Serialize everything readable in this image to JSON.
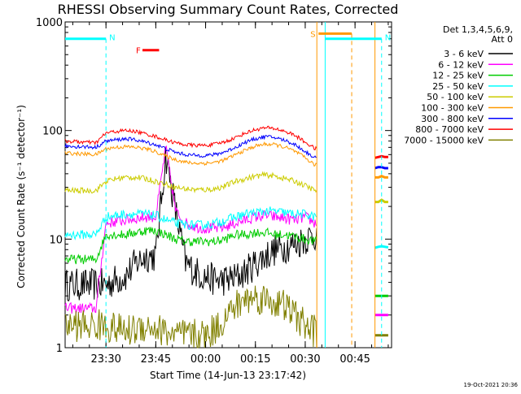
{
  "chart_data": {
    "type": "line",
    "title": "RHESSI Observing Summary Count Rates, Corrected",
    "xlabel": "Start Time (14-Jun-13 23:17:42)",
    "ylabel": "Corrected Count Rate (s⁻¹ detector⁻¹)",
    "y_scale": "log",
    "ylim": [
      1,
      1000
    ],
    "y_ticks": [
      1,
      10,
      100,
      1000
    ],
    "y_tick_labels": [
      "1",
      "10",
      "100",
      "1000"
    ],
    "xlim": [
      "23:17:42",
      "00:56:00"
    ],
    "x_ticks": [
      "23:30",
      "23:45",
      "00:00",
      "00:15",
      "00:30",
      "00:45"
    ],
    "legend_header": [
      "Det 1,3,4,5,6,9,",
      "Att 0"
    ],
    "legend_position": "top-right",
    "footer_date": "19-Oct-2021 20:36",
    "data_gap": [
      "00:33:30",
      "00:51:00"
    ],
    "series": [
      {
        "name": "3 - 6 keV",
        "color": "#000000",
        "x": [
          "23:17:42",
          "23:27",
          "23:30",
          "23:33",
          "23:36",
          "23:39",
          "23:42",
          "23:45",
          "23:48",
          "23:51",
          "23:54",
          "23:57",
          "00:00",
          "00:03",
          "00:06",
          "00:09",
          "00:12",
          "00:15",
          "00:18",
          "00:21",
          "00:24",
          "00:27",
          "00:30",
          "00:33"
        ],
        "values": [
          3.8,
          3.8,
          3.8,
          4.2,
          4.6,
          6.0,
          7.0,
          7.0,
          60,
          18,
          6.0,
          5.0,
          4.5,
          4.2,
          4.2,
          4.4,
          5.0,
          6.0,
          7.0,
          8.0,
          8.5,
          9.0,
          10,
          11
        ]
      },
      {
        "name": "6 - 12 keV",
        "color": "#ff00ff",
        "x": [
          "23:17:42",
          "23:27",
          "23:30",
          "23:33",
          "23:36",
          "23:39",
          "23:42",
          "23:45",
          "23:48",
          "23:51",
          "23:54",
          "23:57",
          "00:00",
          "00:03",
          "00:06",
          "00:09",
          "00:12",
          "00:15",
          "00:18",
          "00:21",
          "00:24",
          "00:27",
          "00:30",
          "00:33"
        ],
        "values": [
          2.3,
          2.3,
          14,
          14.5,
          15,
          15.5,
          16,
          16,
          70,
          18,
          14,
          13,
          12.5,
          12.5,
          13,
          14,
          15,
          16,
          16.5,
          16,
          15.5,
          15,
          16,
          14
        ]
      },
      {
        "name": "12 - 25 keV",
        "color": "#00cc00",
        "x": [
          "23:17:42",
          "23:27",
          "23:30",
          "23:33",
          "23:36",
          "23:39",
          "23:42",
          "23:45",
          "23:48",
          "23:51",
          "23:54",
          "23:57",
          "00:00",
          "00:03",
          "00:06",
          "00:09",
          "00:12",
          "00:15",
          "00:18",
          "00:21",
          "00:24",
          "00:27",
          "00:30",
          "00:33"
        ],
        "values": [
          6.5,
          6.5,
          11,
          11,
          11,
          11.5,
          12,
          12,
          11,
          10,
          9.5,
          9.5,
          9.5,
          9.5,
          10,
          11,
          11,
          11.5,
          11.5,
          11,
          11,
          10.5,
          10,
          9.5
        ]
      },
      {
        "name": "25 - 50 keV",
        "color": "#00ffff",
        "x": [
          "23:17:42",
          "23:27",
          "23:30",
          "23:33",
          "23:36",
          "23:39",
          "23:42",
          "23:45",
          "23:48",
          "23:51",
          "23:54",
          "23:57",
          "00:00",
          "00:03",
          "00:06",
          "00:09",
          "00:12",
          "00:15",
          "00:18",
          "00:21",
          "00:24",
          "00:27",
          "00:30",
          "00:33"
        ],
        "values": [
          11,
          11,
          16,
          16.5,
          17,
          17,
          17,
          16.5,
          15,
          14,
          13.5,
          13.5,
          13.5,
          14,
          15,
          16,
          17,
          17.5,
          18,
          18,
          17.5,
          17,
          17,
          16
        ]
      },
      {
        "name": "50 - 100 keV",
        "color": "#cccc00",
        "x": [
          "23:17:42",
          "23:27",
          "23:30",
          "23:33",
          "23:36",
          "23:39",
          "23:42",
          "23:45",
          "23:48",
          "23:51",
          "23:54",
          "23:57",
          "00:00",
          "00:03",
          "00:06",
          "00:09",
          "00:12",
          "00:15",
          "00:18",
          "00:21",
          "00:24",
          "00:27",
          "00:30",
          "00:33"
        ],
        "values": [
          28,
          28,
          34,
          36,
          37,
          37,
          36,
          34,
          32,
          30,
          29,
          28.5,
          28.5,
          29,
          31,
          34,
          36,
          38,
          39,
          38,
          36,
          34,
          31,
          28
        ]
      },
      {
        "name": "100 - 300 keV",
        "color": "#ff9900",
        "x": [
          "23:17:42",
          "23:27",
          "23:30",
          "23:33",
          "23:36",
          "23:39",
          "23:42",
          "23:45",
          "23:48",
          "23:51",
          "23:54",
          "23:57",
          "00:00",
          "00:03",
          "00:06",
          "00:09",
          "00:12",
          "00:15",
          "00:18",
          "00:21",
          "00:24",
          "00:27",
          "00:30",
          "00:33"
        ],
        "values": [
          62,
          60,
          68,
          70,
          71,
          70,
          68,
          64,
          58,
          54,
          51,
          50,
          50,
          51,
          54,
          60,
          66,
          72,
          75,
          74,
          70,
          64,
          56,
          48
        ]
      },
      {
        "name": "300 - 800 keV",
        "color": "#0000ff",
        "x": [
          "23:17:42",
          "23:27",
          "23:30",
          "23:33",
          "23:36",
          "23:39",
          "23:42",
          "23:45",
          "23:48",
          "23:51",
          "23:54",
          "23:57",
          "00:00",
          "00:03",
          "00:06",
          "00:09",
          "00:12",
          "00:15",
          "00:18",
          "00:21",
          "00:24",
          "00:27",
          "00:30",
          "00:33"
        ],
        "values": [
          72,
          70,
          80,
          82,
          84,
          82,
          78,
          74,
          68,
          63,
          60,
          59,
          59,
          60,
          64,
          70,
          78,
          84,
          88,
          86,
          81,
          74,
          64,
          56
        ]
      },
      {
        "name": "800 - 7000 keV",
        "color": "#ff0000",
        "x": [
          "23:17:42",
          "23:27",
          "23:30",
          "23:33",
          "23:36",
          "23:39",
          "23:42",
          "23:45",
          "23:48",
          "23:51",
          "23:54",
          "23:57",
          "00:00",
          "00:03",
          "00:06",
          "00:09",
          "00:12",
          "00:15",
          "00:18",
          "00:21",
          "00:24",
          "00:27",
          "00:30",
          "00:33"
        ],
        "values": [
          80,
          77,
          95,
          98,
          100,
          98,
          93,
          88,
          82,
          77,
          74,
          73,
          73,
          75,
          79,
          86,
          95,
          102,
          106,
          104,
          98,
          90,
          78,
          68
        ]
      },
      {
        "name": "7000 - 15000 keV",
        "color": "#808000",
        "x": [
          "23:17:42",
          "23:27",
          "23:30",
          "23:33",
          "23:36",
          "23:39",
          "23:42",
          "23:45",
          "23:48",
          "23:51",
          "23:54",
          "23:57",
          "00:00",
          "00:03",
          "00:06",
          "00:09",
          "00:12",
          "00:15",
          "00:18",
          "00:21",
          "00:24",
          "00:27",
          "00:30",
          "00:33"
        ],
        "values": [
          1.6,
          1.6,
          1.6,
          1.5,
          1.4,
          1.5,
          1.6,
          1.5,
          1.4,
          1.3,
          1.3,
          1.3,
          1.3,
          1.5,
          1.9,
          2.4,
          2.8,
          2.9,
          2.8,
          2.6,
          2.4,
          2.0,
          1.6,
          1.4
        ]
      }
    ],
    "post_gap": {
      "x": [
        "00:51",
        "00:52",
        "00:53",
        "00:54",
        "00:55"
      ],
      "values": {
        "800 - 7000 keV": [
          56,
          57,
          58,
          57,
          57
        ],
        "300 - 800 keV": [
          45,
          46,
          46,
          45,
          45
        ],
        "100 - 300 keV": [
          37,
          37,
          38,
          37,
          37
        ],
        "50 - 100 keV": [
          22,
          22,
          23,
          22,
          22
        ],
        "25 - 50 keV": [
          8.3,
          8.5,
          8.6,
          8.5,
          8.4
        ],
        "12 - 25 keV": [
          3.0,
          3.0,
          3.0,
          3.0,
          3.0
        ],
        "6 - 12 keV": [
          2.0,
          2.0,
          2.0,
          2.0,
          2.0
        ],
        "7000 - 15000 keV": [
          1.3,
          1.3,
          1.3,
          1.3,
          1.3
        ]
      }
    },
    "annotations": [
      {
        "text": "N",
        "color": "#00ffff",
        "level": 700,
        "from": "23:17:42",
        "to": "23:30:00",
        "dashed_at": "23:30:00"
      },
      {
        "text": "N",
        "color": "#00ffff",
        "level": 700,
        "from": "00:36:00",
        "to": "00:53:00",
        "dashed_at": "00:53:00"
      },
      {
        "text": "F",
        "color": "#ff0000",
        "level": 550,
        "from": "23:41:00",
        "to": "23:46:00"
      },
      {
        "text": "S",
        "color": "#ff9900",
        "level": 780,
        "from": "00:34:00",
        "to": "00:44:00",
        "dashed_at": "00:44:00"
      }
    ],
    "markers": [
      {
        "time": "00:33:30",
        "color": "#ff9900",
        "style": "solid"
      },
      {
        "time": "00:36:00",
        "color": "#00ffff",
        "style": "solid"
      },
      {
        "time": "00:51:00",
        "color": "#ff9900",
        "style": "solid"
      }
    ]
  }
}
